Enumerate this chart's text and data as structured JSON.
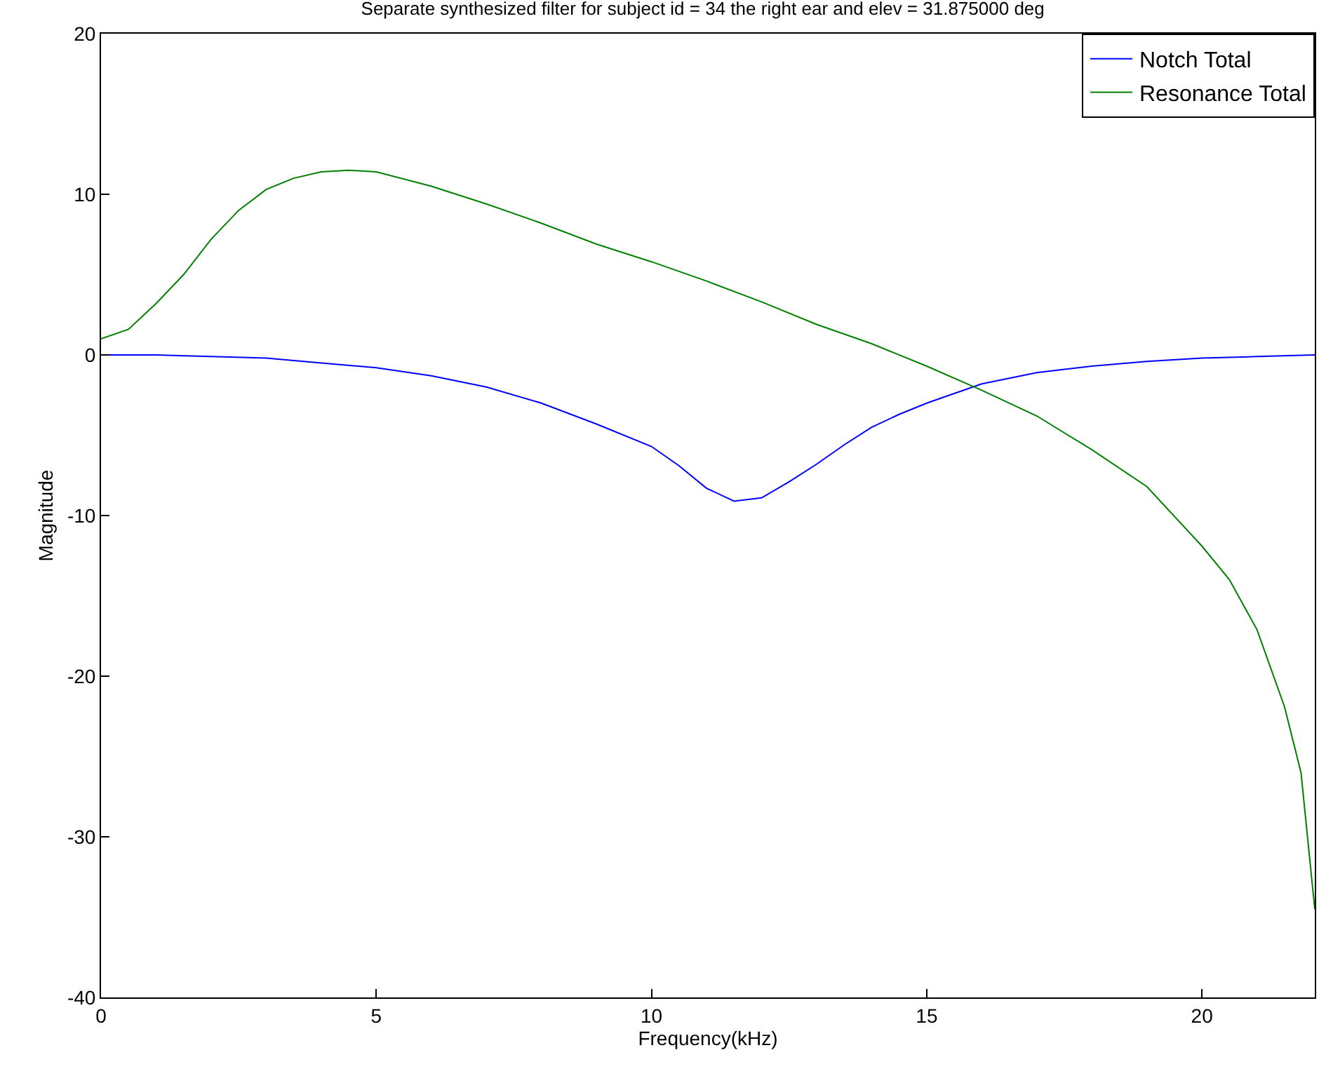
{
  "chart_data": {
    "type": "line",
    "title": "Separate synthesized filter for subject id = 34 the right ear and elev = 31.875000 deg",
    "xlabel": "Frequency(kHz)",
    "ylabel": "Magnitude",
    "xlim": [
      0,
      22.05
    ],
    "xticks": [
      0,
      5,
      10,
      15,
      20
    ],
    "ylim": [
      -40,
      20
    ],
    "yticks": [
      -40,
      -30,
      -20,
      -10,
      0,
      10,
      20
    ],
    "legend": "top right",
    "marker": "none",
    "line_style": "solid",
    "series": [
      {
        "name": "Notch Total",
        "color": "#0000ff",
        "x": [
          0,
          1,
          2,
          3,
          4,
          5,
          6,
          7,
          8,
          9,
          10,
          10.5,
          11,
          11.5,
          12,
          12.5,
          13,
          13.5,
          14,
          14.5,
          15,
          15.5,
          16,
          17,
          18,
          19,
          20,
          21,
          22.05
        ],
        "values": [
          0,
          0,
          -0.1,
          -0.2,
          -0.5,
          -0.8,
          -1.3,
          -2,
          -3,
          -4.3,
          -5.7,
          -6.9,
          -8.3,
          -9.1,
          -8.9,
          -7.9,
          -6.8,
          -5.6,
          -4.5,
          -3.7,
          -3,
          -2.4,
          -1.8,
          -1.1,
          -0.7,
          -0.4,
          -0.2,
          -0.1,
          0
        ]
      },
      {
        "name": "Resonance Total",
        "color": "#008000",
        "x": [
          0,
          0.5,
          1,
          1.5,
          2,
          2.5,
          3,
          3.5,
          4,
          4.5,
          5,
          6,
          7,
          8,
          9,
          10,
          11,
          12,
          13,
          14,
          15,
          16,
          17,
          18,
          19,
          20,
          20.5,
          21,
          21.5,
          21.8,
          22.05
        ],
        "values": [
          1,
          1.6,
          3.2,
          5,
          7.2,
          9,
          10.3,
          11,
          11.4,
          11.5,
          11.4,
          10.5,
          9.4,
          8.2,
          6.9,
          5.8,
          4.6,
          3.3,
          1.9,
          0.7,
          -0.7,
          -2.2,
          -3.8,
          -5.9,
          -8.2,
          -11.9,
          -14,
          -17.1,
          -21.9,
          -26,
          -34.5
        ]
      }
    ]
  }
}
